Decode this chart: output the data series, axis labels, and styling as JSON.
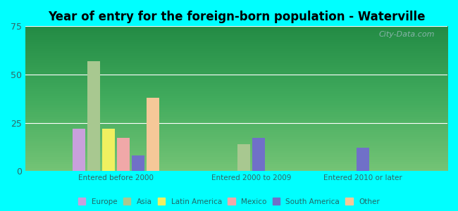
{
  "title": "Year of entry for the foreign-born population - Waterville",
  "groups": [
    "Entered before 2000",
    "Entered 2000 to 2009",
    "Entered 2010 or later"
  ],
  "categories": [
    "Europe",
    "Asia",
    "Latin America",
    "Mexico",
    "South America",
    "Other"
  ],
  "colors": [
    "#c9a0dc",
    "#a8c890",
    "#f0f060",
    "#f0a8a8",
    "#7070c8",
    "#f5c898"
  ],
  "values": [
    [
      22,
      57,
      22,
      17,
      8,
      38
    ],
    [
      0,
      14,
      0,
      0,
      17,
      0
    ],
    [
      0,
      0,
      0,
      0,
      12,
      0
    ]
  ],
  "ylim": [
    0,
    75
  ],
  "yticks": [
    0,
    25,
    50,
    75
  ],
  "background_color": "#00ffff",
  "title_fontsize": 12,
  "bar_width": 0.035,
  "watermark": "City-Data.com"
}
